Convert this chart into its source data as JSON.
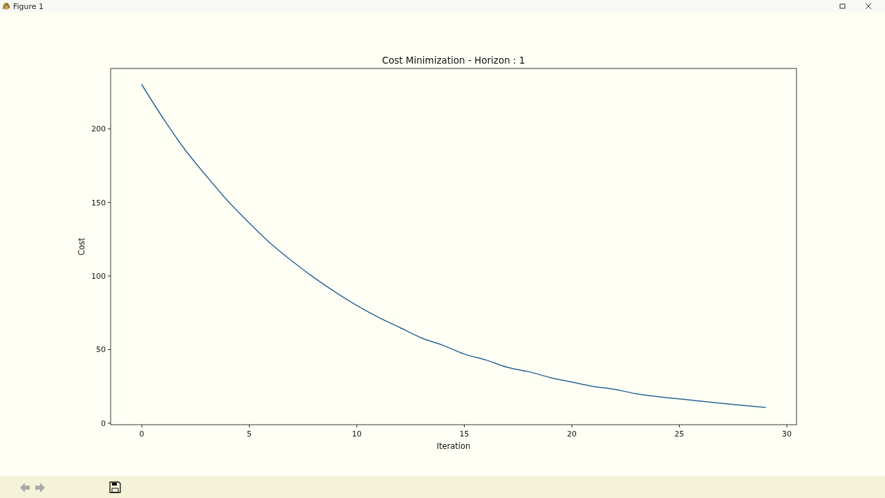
{
  "chart_data": {
    "type": "line",
    "title": "Cost Minimization - Horizon : 1",
    "xlabel": "Iteration",
    "ylabel": "Cost",
    "annotations": [
      "Figure 1"
    ],
    "x": [
      0,
      1,
      2,
      3,
      4,
      5,
      6,
      7,
      8,
      9,
      10,
      11,
      12,
      13,
      14,
      15,
      16,
      17,
      18,
      19,
      20,
      21,
      22,
      23,
      24,
      25,
      26,
      27,
      28,
      29
    ],
    "series": [
      {
        "color": "#2a6496",
        "values": [
          230,
          207,
          186,
          168,
          151,
          136,
          122,
          110,
          99,
          89,
          80,
          72,
          65,
          58,
          53,
          47,
          43,
          38,
          35,
          31,
          28,
          25,
          23,
          20,
          18,
          16.5,
          15,
          13.4,
          12,
          10.8
        ]
      }
    ],
    "xlim": [
      -1.45,
      30.45
    ],
    "xticks": [
      0,
      5,
      10,
      15,
      20,
      25,
      30
    ],
    "ylim": [
      -1,
      241
    ],
    "yticks": [
      0,
      50,
      100,
      150,
      200
    ],
    "grid": false
  }
}
